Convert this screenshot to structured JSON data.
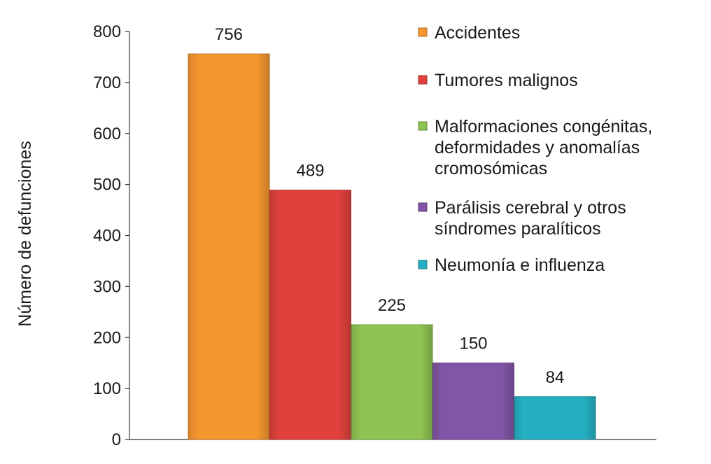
{
  "chart_data": {
    "type": "bar",
    "title": "",
    "xlabel": "",
    "ylabel": "Número de defunciones",
    "ylim": [
      0,
      800
    ],
    "yticks": [
      0,
      100,
      200,
      300,
      400,
      500,
      600,
      700,
      800
    ],
    "grid": false,
    "legend_position": "right",
    "categories": [
      "Accidentes",
      "Tumores malignos",
      "Malformaciones congénitas, deformidades y anomalías cromosómicas",
      "Parálisis cerebral y otros síndromes paralíticos",
      "Neumonía e influenza"
    ],
    "values": [
      756,
      489,
      225,
      150,
      84
    ],
    "data_labels": [
      "756",
      "489",
      "225",
      "150",
      "84"
    ],
    "colors": [
      "#f5962e",
      "#e0413c",
      "#8fc353",
      "#8156a6",
      "#24b0c2"
    ],
    "legend": [
      {
        "lines": [
          "Accidentes"
        ]
      },
      {
        "lines": [
          "Tumores malignos"
        ]
      },
      {
        "lines": [
          "Malformaciones congénitas,",
          "deformidades y anomalías",
          "cromosómicas"
        ]
      },
      {
        "lines": [
          "Parálisis cerebral y otros",
          "síndromes paralíticos"
        ]
      },
      {
        "lines": [
          "Neumonía e influenza"
        ]
      }
    ]
  }
}
